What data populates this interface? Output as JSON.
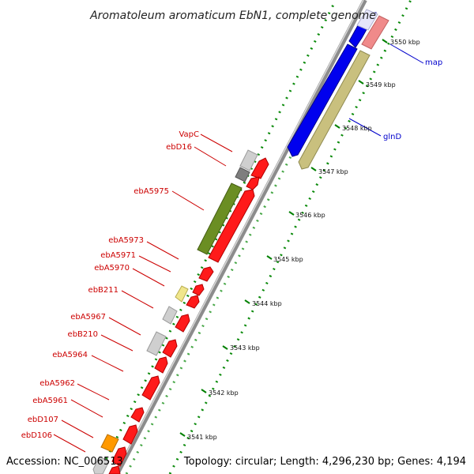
{
  "title": "Aromatoleum aromaticum EbN1, complete genome",
  "footer": {
    "accession": "Accession: NC_006513",
    "summary": "Topology: circular; Length: 4,296,230 bp; Genes: 4,194"
  },
  "kbp_ticks": [
    "3541 kbp",
    "3542 kbp",
    "3543 kbp",
    "3544 kbp",
    "3545 kbp",
    "3546 kbp",
    "3547 kbp",
    "3548 kbp",
    "3549 kbp",
    "3550 kbp"
  ],
  "left_gene_labels": [
    "VapC",
    "ebD16",
    "ebA5975",
    "ebA5973",
    "ebA5971",
    "ebA5970",
    "ebB211",
    "ebA5967",
    "ebB210",
    "ebA5964",
    "ebA5962",
    "ebA5961",
    "ebD107",
    "ebD106"
  ],
  "right_gene_labels": [
    "map",
    "glnD"
  ],
  "colors": {
    "label_left": "#cc0000",
    "label_right": "#0000cc",
    "gene_forward": "#ff0000",
    "backbone": "#888888",
    "green_dots": "#008000",
    "cds_blue": "#0000ee",
    "cds_olive": "#c8c080",
    "cds_pink": "#f08888",
    "cds_green": "#6b8e23",
    "cds_yellow": "#f0e68c",
    "cds_orange": "#ff9900",
    "cds_gray": "#c8c8c8",
    "cds_darkgray": "#808080"
  }
}
